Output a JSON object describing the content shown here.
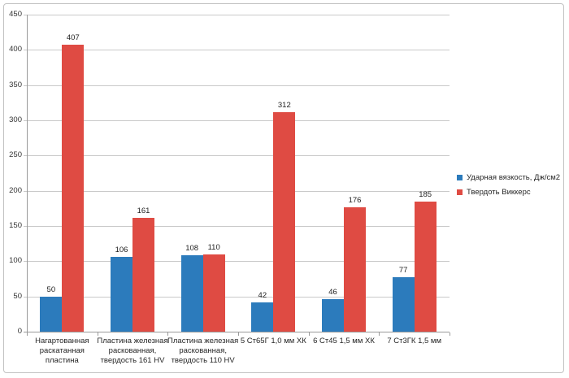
{
  "chart_data": {
    "type": "bar",
    "categories": [
      "Нагартованная раскатанная пластина",
      "Пластина железная раскованная, твердость 161 HV",
      "Пластина железная раскованная, твердость 110 HV",
      "5 Ст65Г 1,0 мм ХК",
      "6 Ст45 1,5 мм ХК",
      "7 Ст3ГК 1,5 мм"
    ],
    "series": [
      {
        "name": "Ударная вязкость, Дж/см2",
        "color": "#2c7bbc",
        "values": [
          50,
          106,
          108,
          42,
          46,
          77
        ]
      },
      {
        "name": "Твердоть Виккерс",
        "color": "#df4b43",
        "values": [
          407,
          161,
          110,
          312,
          176,
          185
        ]
      }
    ],
    "title": "",
    "xlabel": "",
    "ylabel": "",
    "ylim": [
      0,
      450
    ],
    "yticks": [
      0,
      50,
      100,
      150,
      200,
      250,
      300,
      350,
      400,
      450
    ],
    "grid": true,
    "legend_position": "right"
  },
  "colors": {
    "grid": "#c9c9c9",
    "axis": "#9a9a9a",
    "text": "#262626",
    "figure_border": "#c2c2c2",
    "background": "#ffffff"
  }
}
